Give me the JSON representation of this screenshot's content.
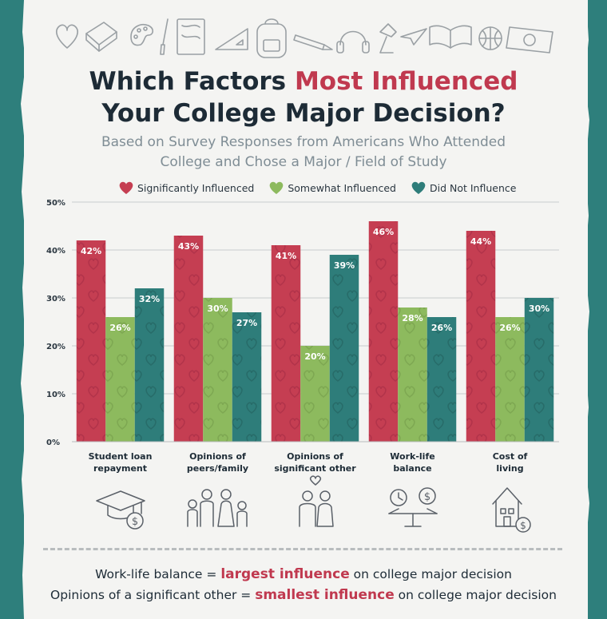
{
  "title": {
    "line1_a": "Which Factors ",
    "line1_highlight": "Most Influenced",
    "line2": "Your College Major Decision?"
  },
  "subtitle": {
    "line1": "Based on Survey Responses from Americans Who Attended",
    "line2": "College and Chose a Major / Field of Study"
  },
  "colors": {
    "significant": "#c53e52",
    "somewhat": "#8dba5e",
    "not": "#2e7d7a",
    "background": "#2e7f7c",
    "paper": "#f4f4f2"
  },
  "doodle_icons": [
    "heart-icon",
    "book-icon",
    "palette-icon",
    "paintbrush-icon",
    "notebook-icon",
    "ruler-triangle-icon",
    "backpack-icon",
    "pencil-icon",
    "headphones-icon",
    "lamp-icon",
    "paper-plane-icon",
    "open-book-icon",
    "basketball-icon",
    "money-icon"
  ],
  "category_icons": [
    "graduation-cap-dollar-icon",
    "family-icon",
    "couple-icon",
    "balance-scale-icon",
    "house-dollar-icon"
  ],
  "chart_data": {
    "type": "bar",
    "categories": [
      "Student loan repayment",
      "Opinions of peers/family",
      "Opinions of significant other",
      "Work-life balance",
      "Cost of living"
    ],
    "category_lines": [
      [
        "Student loan",
        "repayment"
      ],
      [
        "Opinions of",
        "peers/family"
      ],
      [
        "Opinions of",
        "significant other"
      ],
      [
        "Work-life",
        "balance"
      ],
      [
        "Cost of",
        "living"
      ]
    ],
    "series": [
      {
        "name": "Significantly Influenced",
        "values": [
          42,
          43,
          41,
          46,
          44
        ]
      },
      {
        "name": "Somewhat Influenced",
        "values": [
          26,
          30,
          20,
          28,
          26
        ]
      },
      {
        "name": "Did Not Influence",
        "values": [
          32,
          27,
          39,
          26,
          30
        ]
      }
    ],
    "ylim": [
      0,
      50
    ],
    "yticks": [
      "0%",
      "10%",
      "20%",
      "30%",
      "40%",
      "50%"
    ],
    "value_suffix": "%",
    "grid": true,
    "legend": "top"
  },
  "summary": {
    "line1_a": "Work-life balance = ",
    "line1_em": "largest influence",
    "line1_b": " on college major decision",
    "line2_a": "Opinions of a significant other = ",
    "line2_em": "smallest influence",
    "line2_b": " on college major decision"
  }
}
